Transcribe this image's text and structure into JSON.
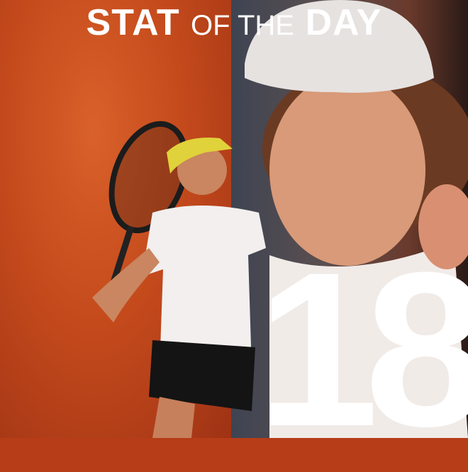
{
  "title": {
    "word1": "STAT",
    "word2": "OF THE",
    "word3": "DAY"
  },
  "stat_value": "18",
  "colors": {
    "accent": "#c44a1c",
    "text": "#ffffff"
  }
}
